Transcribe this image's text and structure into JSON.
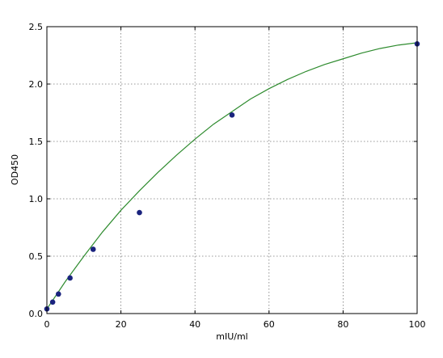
{
  "chart_data": {
    "type": "scatter",
    "title": "",
    "xlabel": "mIU/ml",
    "ylabel": "OD450",
    "xlim": [
      0,
      100
    ],
    "ylim": [
      0,
      2.5
    ],
    "xticks": [
      0,
      20,
      40,
      60,
      80,
      100
    ],
    "xtick_labels": [
      "0",
      "20",
      "40",
      "60",
      "80",
      "100"
    ],
    "yticks": [
      0.0,
      0.5,
      1.0,
      1.5,
      2.0,
      2.5
    ],
    "ytick_labels": [
      "0.0",
      "0.5",
      "1.0",
      "1.5",
      "2.0",
      "2.5"
    ],
    "grid": true,
    "series": [
      {
        "type": "scatter",
        "color": "#1a237e",
        "x": [
          0,
          1.56,
          3.125,
          6.25,
          12.5,
          25,
          50,
          100
        ],
        "y": [
          0.04,
          0.1,
          0.17,
          0.31,
          0.56,
          0.88,
          1.73,
          2.35
        ]
      },
      {
        "type": "line",
        "color": "#2e8b2e",
        "x": [
          0,
          5,
          10,
          15,
          20,
          25,
          30,
          35,
          40,
          45,
          50,
          55,
          60,
          65,
          70,
          75,
          80,
          85,
          90,
          95,
          100
        ],
        "y": [
          0.04,
          0.28,
          0.5,
          0.71,
          0.9,
          1.07,
          1.23,
          1.38,
          1.52,
          1.65,
          1.76,
          1.87,
          1.96,
          2.04,
          2.11,
          2.17,
          2.22,
          2.27,
          2.31,
          2.34,
          2.36
        ]
      }
    ]
  }
}
